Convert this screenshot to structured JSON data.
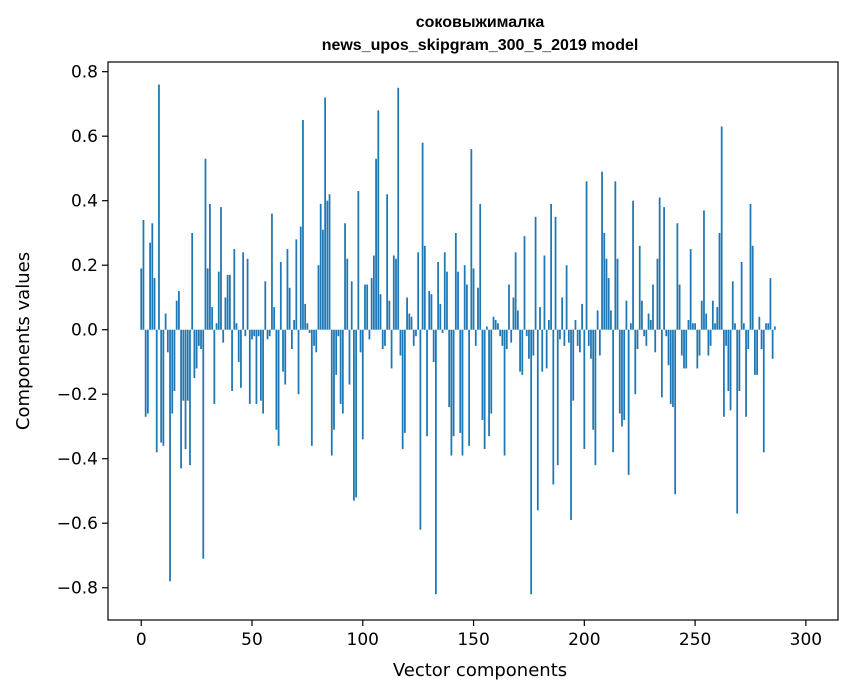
{
  "chart_data": {
    "type": "bar",
    "title": "соковыжималка",
    "subtitle": "news_upos_skipgram_300_5_2019 model",
    "xlabel": "Vector components",
    "ylabel": "Components values",
    "xlim": [
      -15,
      314.5
    ],
    "ylim": [
      -0.9,
      0.83
    ],
    "xticks": [
      0,
      50,
      100,
      150,
      200,
      250,
      300
    ],
    "yticks": [
      -0.8,
      -0.6,
      -0.4,
      -0.2,
      0.0,
      0.2,
      0.4,
      0.6,
      0.8
    ],
    "xtick_labels": [
      "0",
      "50",
      "100",
      "150",
      "200",
      "250",
      "300"
    ],
    "ytick_labels": [
      "−0.8",
      "−0.6",
      "−0.4",
      "−0.2",
      "0.0",
      "0.2",
      "0.4",
      "0.6",
      "0.8"
    ],
    "grid": false,
    "color": "#1f77b4",
    "values": [
      0.19,
      0.34,
      -0.27,
      -0.26,
      0.27,
      0.33,
      0.16,
      -0.38,
      0.76,
      -0.35,
      -0.36,
      0.05,
      -0.07,
      -0.78,
      -0.26,
      -0.19,
      0.09,
      0.12,
      -0.43,
      -0.22,
      -0.37,
      -0.22,
      -0.42,
      0.3,
      -0.15,
      -0.12,
      -0.05,
      -0.06,
      -0.71,
      0.53,
      0.19,
      0.39,
      0.07,
      -0.23,
      0.02,
      0.18,
      0.38,
      -0.04,
      0.1,
      0.17,
      0.17,
      -0.19,
      0.25,
      0.02,
      -0.1,
      -0.18,
      0.24,
      -0.02,
      0.22,
      -0.23,
      -0.03,
      -0.02,
      -0.23,
      -0.02,
      -0.22,
      -0.26,
      0.15,
      -0.03,
      -0.02,
      0.36,
      0.07,
      -0.31,
      -0.36,
      0.21,
      -0.13,
      -0.17,
      0.25,
      0.13,
      -0.06,
      0.03,
      0.28,
      -0.2,
      0.32,
      0.65,
      0.08,
      0.02,
      -0.01,
      -0.36,
      -0.05,
      -0.07,
      0.2,
      0.39,
      0.31,
      0.72,
      0.4,
      0.42,
      -0.39,
      -0.31,
      -0.14,
      -0.02,
      -0.23,
      -0.26,
      0.33,
      0.22,
      -0.17,
      0.15,
      -0.53,
      -0.52,
      0.43,
      -0.07,
      -0.34,
      0.14,
      0.14,
      -0.03,
      0.16,
      0.23,
      0.53,
      0.68,
      0.11,
      -0.06,
      -0.05,
      0.42,
      0.09,
      -0.12,
      0.23,
      0.22,
      0.75,
      -0.08,
      -0.37,
      -0.32,
      0.1,
      0.05,
      0.04,
      -0.05,
      -0.02,
      0.24,
      -0.62,
      0.58,
      0.26,
      -0.33,
      0.12,
      0.11,
      -0.1,
      -0.82,
      0.21,
      0.08,
      -0.01,
      0.24,
      0.18,
      -0.24,
      -0.39,
      -0.33,
      0.3,
      0.18,
      -0.32,
      -0.39,
      0.2,
      0.14,
      -0.36,
      0.56,
      0.19,
      -0.05,
      0.13,
      0.39,
      -0.28,
      -0.37,
      0.01,
      -0.33,
      -0.26,
      0.04,
      0.03,
      0.02,
      -0.02,
      -0.05,
      -0.39,
      -0.06,
      0.14,
      -0.04,
      0.1,
      0.24,
      0.06,
      -0.13,
      -0.14,
      0.29,
      -0.02,
      -0.09,
      -0.82,
      -0.08,
      0.35,
      -0.56,
      0.07,
      -0.13,
      0.23,
      -0.12,
      0.03,
      0.39,
      -0.48,
      0.35,
      -0.42,
      -0.03,
      0.1,
      -0.05,
      0.2,
      -0.04,
      -0.59,
      -0.22,
      0.03,
      -0.05,
      -0.07,
      0.08,
      -0.37,
      0.46,
      -0.05,
      -0.09,
      -0.31,
      -0.42,
      0.06,
      -0.08,
      0.49,
      0.3,
      0.22,
      0.16,
      0.06,
      -0.38,
      0.46,
      0.22,
      -0.26,
      -0.3,
      -0.28,
      0.09,
      -0.45,
      0.02,
      0.4,
      -0.2,
      -0.06,
      0.26,
      0.09,
      -0.02,
      -0.05,
      0.05,
      0.03,
      0.14,
      -0.07,
      0.22,
      0.41,
      -0.21,
      0.38,
      -0.02,
      -0.11,
      -0.23,
      -0.24,
      -0.51,
      0.33,
      0.14,
      -0.08,
      -0.12,
      -0.12,
      0.03,
      0.25,
      0.02,
      0.02,
      -0.12,
      -0.08,
      0.09,
      0.37,
      0.05,
      -0.08,
      -0.05,
      0.09,
      0.02,
      0.07,
      0.3,
      0.63,
      -0.27,
      -0.05,
      -0.19,
      -0.25,
      0.15,
      0.02,
      -0.57,
      -0.19,
      0.21,
      0.02,
      -0.27,
      -0.06,
      0.39,
      0.26,
      -0.14,
      -0.14,
      0.04,
      -0.06,
      -0.38,
      0.02,
      0.02,
      0.16,
      -0.09,
      0.01
    ]
  }
}
